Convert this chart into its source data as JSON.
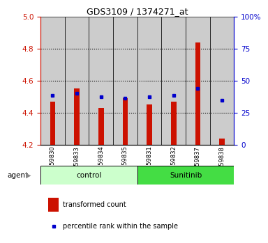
{
  "title": "GDS3109 / 1374271_at",
  "samples": [
    "GSM159830",
    "GSM159833",
    "GSM159834",
    "GSM159835",
    "GSM159831",
    "GSM159832",
    "GSM159837",
    "GSM159838"
  ],
  "red_values": [
    4.47,
    4.55,
    4.43,
    4.49,
    4.45,
    4.47,
    4.84,
    4.24
  ],
  "blue_values": [
    4.51,
    4.52,
    4.5,
    4.49,
    4.5,
    4.51,
    4.55,
    4.48
  ],
  "ymin": 4.2,
  "ymax": 5.0,
  "y_ticks_left": [
    4.2,
    4.4,
    4.6,
    4.8,
    5.0
  ],
  "y_ticks_right": [
    0,
    25,
    50,
    75,
    100
  ],
  "bar_color": "#cc1100",
  "dot_color": "#0000cc",
  "control_bg": "#ccffcc",
  "sunitinib_bg": "#44dd44",
  "sample_bg": "#cccccc",
  "group_label_control": "control",
  "group_label_sunitinib": "Sunitinib",
  "legend_red": "transformed count",
  "legend_blue": "percentile rank within the sample",
  "agent_label": "agent",
  "left_axis_color": "#cc1100",
  "right_axis_color": "#0000cc",
  "grid_lines": [
    4.4,
    4.6,
    4.8
  ],
  "n_control": 4,
  "n_sunitinib": 4
}
